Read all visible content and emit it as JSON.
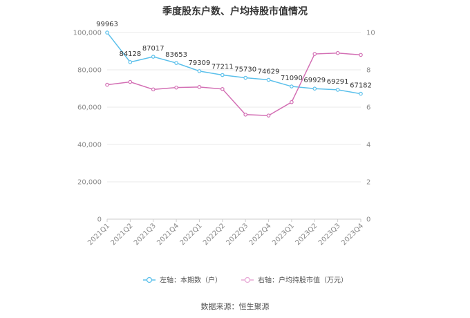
{
  "chart_data": {
    "type": "line",
    "title": "季度股东户数、户均持股市值情况",
    "categories": [
      "2021Q1",
      "2021Q2",
      "2021Q3",
      "2021Q4",
      "2022Q1",
      "2022Q2",
      "2022Q3",
      "2022Q4",
      "2023Q1",
      "2023Q2",
      "2023Q3",
      "2023Q4"
    ],
    "series": [
      {
        "name": "左轴：本期数（户）",
        "axis": "left",
        "color": "#5bc0eb",
        "values": [
          99963,
          84128,
          87017,
          83653,
          79309,
          77211,
          75730,
          74629,
          71090,
          69929,
          69291,
          67182
        ],
        "labels": [
          "99963",
          "84128",
          "87017",
          "83653",
          "79309",
          "77211",
          "75730",
          "74629",
          "71090",
          "69929",
          "69291",
          "67182"
        ]
      },
      {
        "name": "右轴：户均持股市值（万元）",
        "axis": "right",
        "color": "#d36fb4",
        "values": [
          7.2,
          7.35,
          6.95,
          7.05,
          7.08,
          6.97,
          5.6,
          5.55,
          6.27,
          8.85,
          8.9,
          8.8
        ]
      }
    ],
    "yleft": {
      "ylim": [
        0,
        100000
      ],
      "ticks": [
        "0",
        "20,000",
        "40,000",
        "60,000",
        "80,000",
        "100,000"
      ]
    },
    "yright": {
      "ylim": [
        0,
        10
      ],
      "ticks": [
        "0",
        "2",
        "4",
        "6",
        "8",
        "10"
      ]
    },
    "grid": true,
    "legend": "bottom"
  },
  "source": "数据来源：恒生聚源"
}
